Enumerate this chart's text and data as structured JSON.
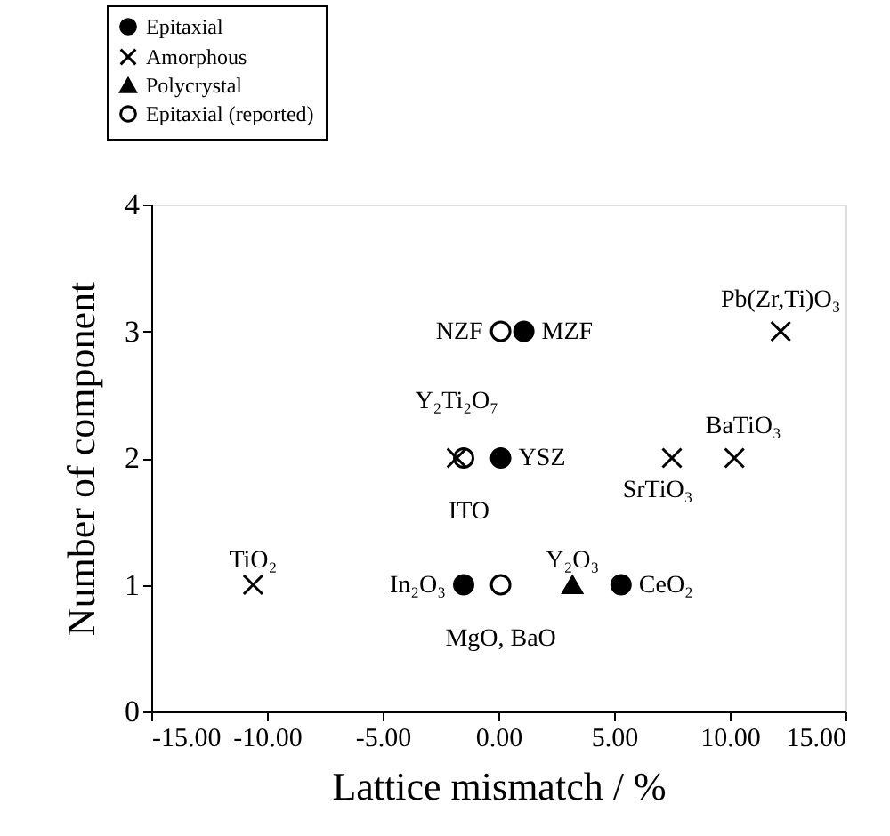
{
  "chart_data": {
    "type": "scatter",
    "xlabel": "Lattice mismatch / %",
    "ylabel": "Number of component",
    "xlim": [
      -15,
      15
    ],
    "ylim": [
      0,
      4
    ],
    "xticks": [
      {
        "value": -15,
        "label": "-15.00"
      },
      {
        "value": -10,
        "label": "-10.00"
      },
      {
        "value": -5,
        "label": "-5.00"
      },
      {
        "value": 0,
        "label": "0.00"
      },
      {
        "value": 5,
        "label": "5.00"
      },
      {
        "value": 10,
        "label": "10.00"
      },
      {
        "value": 15,
        "label": "15.00"
      }
    ],
    "yticks": [
      0,
      1,
      2,
      3,
      4
    ],
    "grid": false,
    "legend": "top left",
    "series": [
      {
        "name": "Epitaxial",
        "color": "#000000",
        "marker": "circle",
        "x": [
          -1.5,
          5.3,
          0.1,
          1.1
        ],
        "values": [
          1,
          1,
          2,
          3
        ]
      },
      {
        "name": "Amorphous",
        "color": "#000000",
        "marker": "cross",
        "x": [
          -10.6,
          -1.8,
          7.5,
          10.2,
          12.2
        ],
        "values": [
          1,
          2,
          2,
          2,
          3
        ]
      },
      {
        "name": "Polycrystal",
        "color": "#000000",
        "marker": "triangle",
        "x": [
          3.2
        ],
        "values": [
          1
        ]
      },
      {
        "name": "Epitaxial (reported)",
        "color": "#ffffff",
        "marker": "circle",
        "x": [
          0.1,
          -1.5,
          0.1
        ],
        "values": [
          1,
          2,
          3
        ]
      }
    ],
    "annotations": [
      {
        "text": "TiO₂",
        "x": -10.6,
        "y": 1
      },
      {
        "text": "In₂O₃",
        "x": -1.5,
        "y": 1
      },
      {
        "text": "MgO, BaO",
        "x": 0.1,
        "y": 1
      },
      {
        "text": "Y₂O₃",
        "x": 3.2,
        "y": 1
      },
      {
        "text": "CeO₂",
        "x": 5.3,
        "y": 1
      },
      {
        "text": "Y₂Ti₂O₇",
        "x": -1.8,
        "y": 2
      },
      {
        "text": "ITO",
        "x": -1.5,
        "y": 2
      },
      {
        "text": "YSZ",
        "x": 0.1,
        "y": 2
      },
      {
        "text": "SrTiO₃",
        "x": 7.5,
        "y": 2
      },
      {
        "text": "BaTiO₃",
        "x": 10.2,
        "y": 2
      },
      {
        "text": "NZF",
        "x": 0.1,
        "y": 3
      },
      {
        "text": "MZF",
        "x": 1.1,
        "y": 3
      },
      {
        "text": "Pb(Zr,Ti)O₃",
        "x": 12.2,
        "y": 3
      }
    ]
  }
}
